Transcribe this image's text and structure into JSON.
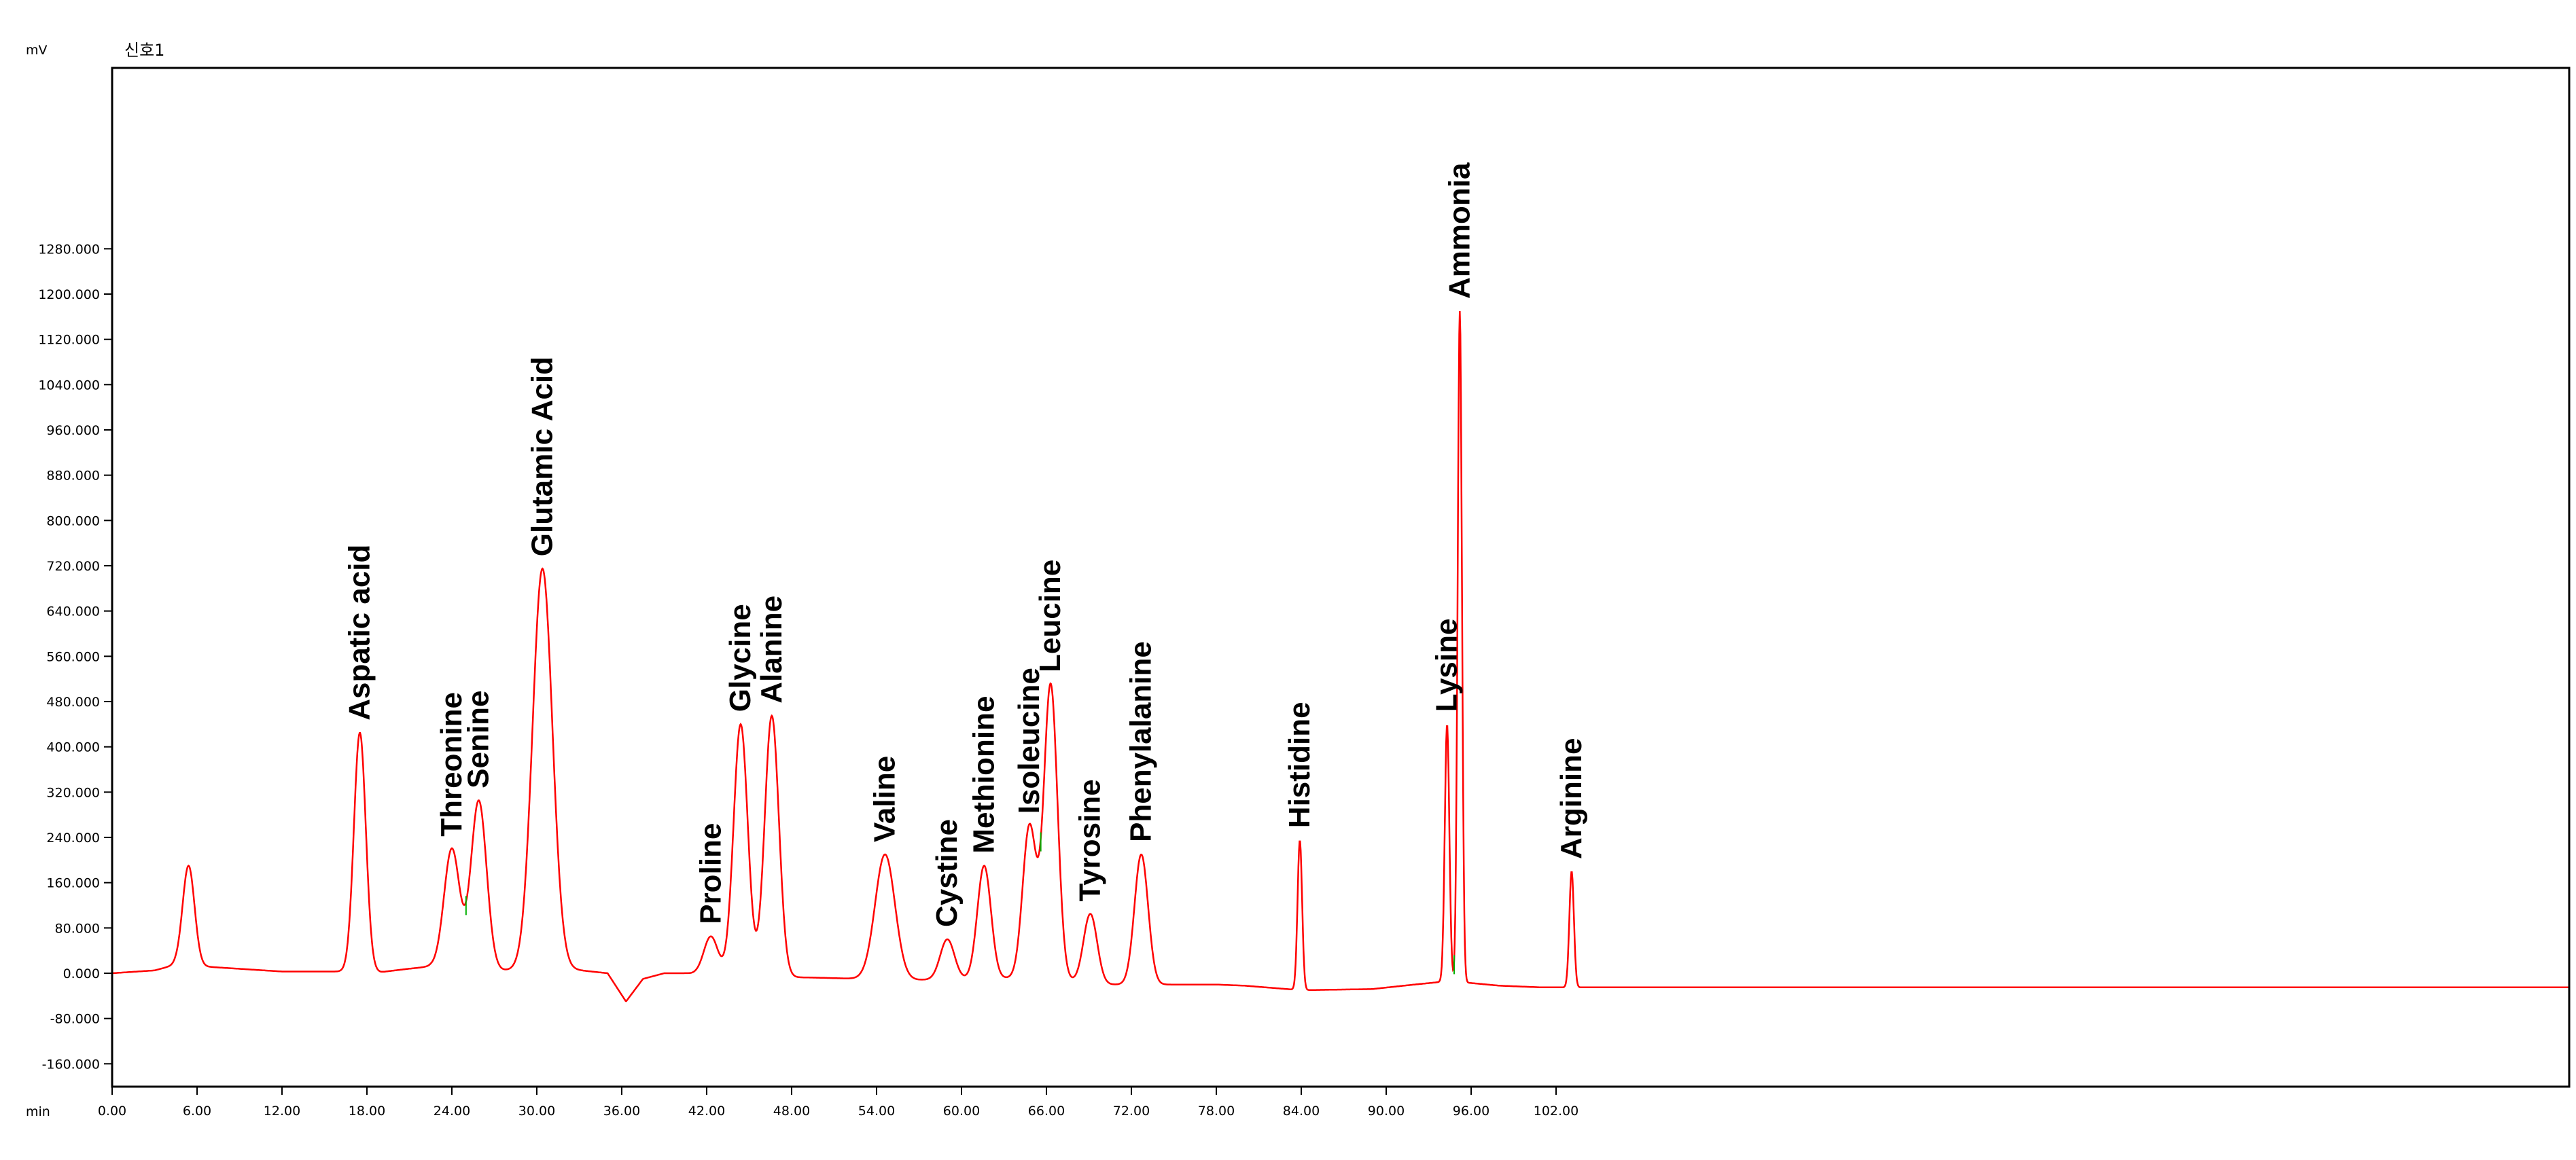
{
  "chart_data": {
    "type": "line",
    "title": "",
    "signal_label": "신호1",
    "ylabel": "mV",
    "xlabel": "min",
    "xlim": [
      0,
      110
    ],
    "ylim": [
      -170,
      1340
    ],
    "y_ticks": [
      "-160.000",
      "-80.000",
      "0.000",
      "80.000",
      "160.000",
      "240.000",
      "320.000",
      "400.000",
      "480.000",
      "560.000",
      "640.000",
      "720.000",
      "800.000",
      "880.000",
      "960.000",
      "1040.000",
      "1120.000",
      "1200.000",
      "1280.000"
    ],
    "x_ticks": [
      "0.00",
      "6.00",
      "12.00",
      "18.00",
      "24.00",
      "30.00",
      "36.00",
      "42.00",
      "48.00",
      "54.00",
      "60.00",
      "66.00",
      "72.00",
      "78.00",
      "84.00",
      "90.00",
      "96.00",
      "102.00"
    ],
    "grid": false,
    "baseline": [
      [
        0,
        0
      ],
      [
        3,
        5
      ],
      [
        4.5,
        15
      ],
      [
        12,
        3
      ],
      [
        16,
        3
      ],
      [
        19,
        2
      ],
      [
        21,
        8
      ],
      [
        22.5,
        12
      ],
      [
        27.5,
        5
      ],
      [
        32,
        8
      ],
      [
        35,
        0
      ],
      [
        36.3,
        -50
      ],
      [
        37.5,
        -10
      ],
      [
        39,
        0
      ],
      [
        40.5,
        0
      ],
      [
        44,
        -5
      ],
      [
        50,
        -8
      ],
      [
        56,
        -12
      ],
      [
        62,
        -10
      ],
      [
        64,
        -8
      ],
      [
        66,
        -5
      ],
      [
        69,
        -20
      ],
      [
        75,
        -20
      ],
      [
        78,
        -20
      ],
      [
        80,
        -22
      ],
      [
        84,
        -30
      ],
      [
        89,
        -28
      ],
      [
        92,
        -20
      ],
      [
        94,
        -15
      ],
      [
        95,
        -15
      ],
      [
        98,
        -22
      ],
      [
        101,
        -25
      ],
      [
        104.5,
        -25
      ],
      [
        110,
        -25
      ]
    ],
    "series": [
      {
        "peaks": [
          {
            "label": "",
            "x": 5.4,
            "y": 190
          },
          {
            "label": "Aspatic acid",
            "x": 17.5,
            "y": 425
          },
          {
            "label": "Threonine",
            "x": 24.0,
            "y": 220
          },
          {
            "label": "Senine",
            "x": 25.9,
            "y": 305
          },
          {
            "label": "Glutamic Acid",
            "x": 30.4,
            "y": 715
          },
          {
            "label": "Proline",
            "x": 42.3,
            "y": 65
          },
          {
            "label": "Glycine",
            "x": 44.4,
            "y": 440
          },
          {
            "label": "Alanine",
            "x": 46.6,
            "y": 455
          },
          {
            "label": "Valine",
            "x": 54.6,
            "y": 210
          },
          {
            "label": "Cystine",
            "x": 59.0,
            "y": 60
          },
          {
            "label": "Methionine",
            "x": 61.6,
            "y": 190
          },
          {
            "label": "Isoleucine",
            "x": 64.8,
            "y": 260
          },
          {
            "label": "Leucine",
            "x": 66.3,
            "y": 510
          },
          {
            "label": "Tyrosine",
            "x": 69.1,
            "y": 105
          },
          {
            "label": "Phenylalanine",
            "x": 72.7,
            "y": 210
          },
          {
            "label": "Histidine",
            "x": 83.9,
            "y": 235
          },
          {
            "label": "Lysine",
            "x": 94.3,
            "y": 440
          },
          {
            "label": "Ammonia",
            "x": 95.2,
            "y": 1170
          },
          {
            "label": "Arginine",
            "x": 103.1,
            "y": 180
          }
        ]
      }
    ],
    "colors": {
      "trace": "#ff0000",
      "axis": "#000000",
      "marker": "#00b000"
    }
  }
}
